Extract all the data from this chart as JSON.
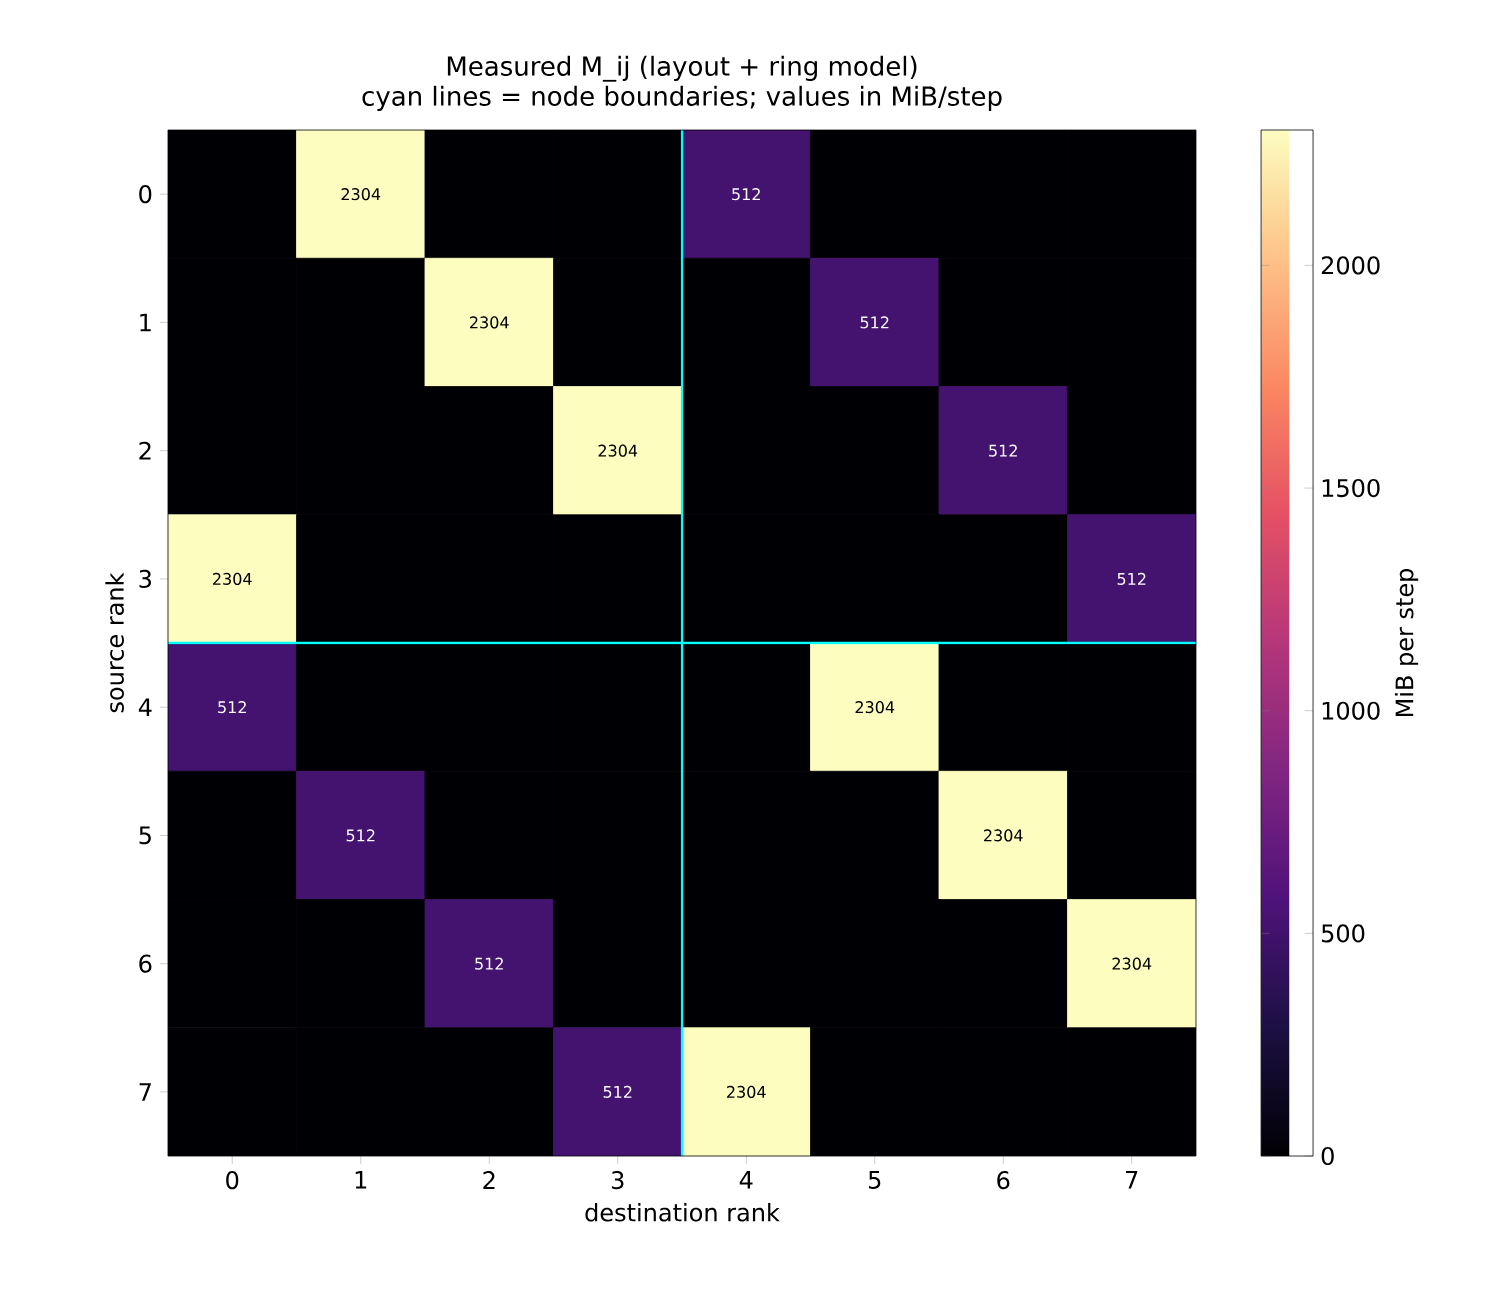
{
  "chart_data": {
    "type": "heatmap",
    "title": "Measured M_ij (layout + ring model)",
    "subtitle": "cyan lines = node boundaries; values in MiB/step",
    "xlabel": "destination rank",
    "ylabel": "source rank",
    "clabel": "MiB per step",
    "categories": [
      "0",
      "1",
      "2",
      "3",
      "4",
      "5",
      "6",
      "7"
    ],
    "y_categories": [
      "0",
      "1",
      "2",
      "3",
      "4",
      "5",
      "6",
      "7"
    ],
    "cells": [
      [
        0,
        2304,
        0,
        0,
        512,
        0,
        0,
        0
      ],
      [
        0,
        0,
        2304,
        0,
        0,
        512,
        0,
        0
      ],
      [
        0,
        0,
        0,
        2304,
        0,
        0,
        512,
        0
      ],
      [
        2304,
        0,
        0,
        0,
        0,
        0,
        0,
        512
      ],
      [
        512,
        0,
        0,
        0,
        0,
        2304,
        0,
        0
      ],
      [
        0,
        512,
        0,
        0,
        0,
        0,
        2304,
        0
      ],
      [
        0,
        0,
        512,
        0,
        0,
        0,
        0,
        2304
      ],
      [
        0,
        0,
        0,
        512,
        2304,
        0,
        0,
        0
      ]
    ],
    "cell_labels": [
      [
        null,
        "2304",
        null,
        null,
        "512",
        null,
        null,
        null
      ],
      [
        null,
        null,
        "2304",
        null,
        null,
        "512",
        null,
        null
      ],
      [
        null,
        null,
        null,
        "2304",
        null,
        null,
        "512",
        null
      ],
      [
        "2304",
        null,
        null,
        null,
        null,
        null,
        null,
        "512"
      ],
      [
        "512",
        null,
        null,
        null,
        null,
        "2304",
        null,
        null
      ],
      [
        null,
        "512",
        null,
        null,
        null,
        null,
        "2304",
        null
      ],
      [
        null,
        null,
        "512",
        null,
        null,
        null,
        null,
        "2304"
      ],
      [
        null,
        null,
        null,
        "512",
        "2304",
        null,
        null,
        null
      ]
    ],
    "clim": [
      0,
      2304
    ],
    "cticks": [
      0,
      500,
      1000,
      1500,
      2000
    ]
  }
}
